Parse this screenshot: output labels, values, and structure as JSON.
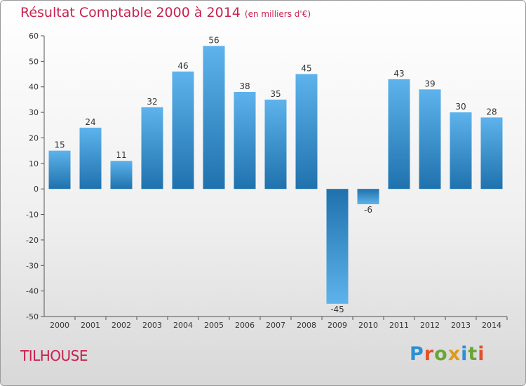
{
  "title": "Résultat Comptable 2000 à 2014",
  "subtitle": "(en milliers d'€)",
  "commune": "TILHOUSE",
  "logo": "Proxiti",
  "colors": {
    "title": "#c8224f",
    "bar_light": "#5eb3ec",
    "bar_dark": "#1f72ad"
  },
  "chart_data": {
    "type": "bar",
    "title": "Résultat Comptable 2000 à 2014",
    "subtitle": "(en milliers d'€)",
    "xlabel": "",
    "ylabel": "",
    "categories": [
      "2000",
      "2001",
      "2002",
      "2003",
      "2004",
      "2005",
      "2006",
      "2007",
      "2008",
      "2009",
      "2010",
      "2011",
      "2012",
      "2013",
      "2014"
    ],
    "values": [
      15,
      24,
      11,
      32,
      46,
      56,
      38,
      35,
      45,
      -45,
      -6,
      43,
      39,
      30,
      28
    ],
    "ylim": [
      -50,
      60
    ],
    "yticks": [
      -50,
      -40,
      -30,
      -20,
      -10,
      0,
      10,
      20,
      30,
      40,
      50,
      60
    ],
    "grid": false,
    "legend": "none"
  }
}
